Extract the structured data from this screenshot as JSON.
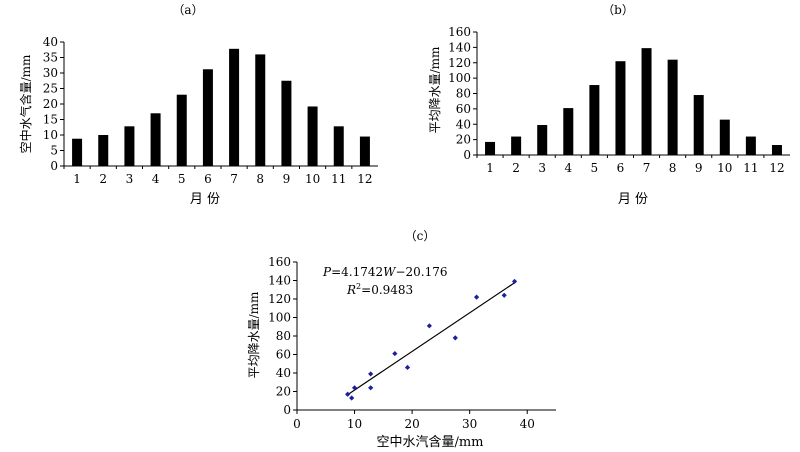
{
  "chart_data": [
    {
      "type": "bar",
      "panel_label": "（a）",
      "xlabel": "月 份",
      "ylabel": "空中水气含量/mm",
      "categories": [
        "1",
        "2",
        "3",
        "4",
        "5",
        "6",
        "7",
        "8",
        "9",
        "10",
        "11",
        "12"
      ],
      "values": [
        8.8,
        10.0,
        12.8,
        17.0,
        23.0,
        31.2,
        37.8,
        36.0,
        27.5,
        19.2,
        12.8,
        9.5
      ],
      "ylim": [
        0,
        40
      ],
      "yticks": [
        "0",
        "5",
        "10",
        "15",
        "20",
        "25",
        "30",
        "35",
        "40"
      ],
      "grid": false,
      "bar_color": "#000000"
    },
    {
      "type": "bar",
      "panel_label": "（b）",
      "xlabel": "月 份",
      "ylabel": "平均降水量/mm",
      "categories": [
        "1",
        "2",
        "3",
        "4",
        "5",
        "6",
        "7",
        "8",
        "9",
        "10",
        "11",
        "12"
      ],
      "values": [
        17,
        24,
        39,
        61,
        91,
        122,
        139,
        124,
        78,
        46,
        24,
        13
      ],
      "ylim": [
        0,
        160
      ],
      "yticks": [
        "0",
        "20",
        "40",
        "60",
        "80",
        "100",
        "120",
        "140",
        "160"
      ],
      "grid": false,
      "bar_color": "#000000"
    },
    {
      "type": "scatter",
      "panel_label": "（c）",
      "xlabel": "空中水汽含量/mm",
      "ylabel": "平均降水量/mm",
      "xlim": [
        0,
        45
      ],
      "ylim": [
        0,
        160
      ],
      "xticks": [
        "0",
        "10",
        "20",
        "30",
        "40"
      ],
      "yticks": [
        "0",
        "20",
        "40",
        "60",
        "80",
        "100",
        "120",
        "140",
        "160"
      ],
      "points": [
        {
          "x": 8.8,
          "y": 17
        },
        {
          "x": 9.5,
          "y": 13
        },
        {
          "x": 10.0,
          "y": 24
        },
        {
          "x": 12.8,
          "y": 39
        },
        {
          "x": 12.8,
          "y": 24
        },
        {
          "x": 17.0,
          "y": 61
        },
        {
          "x": 19.2,
          "y": 46
        },
        {
          "x": 23.0,
          "y": 91
        },
        {
          "x": 27.5,
          "y": 78
        },
        {
          "x": 31.2,
          "y": 122
        },
        {
          "x": 36.0,
          "y": 124
        },
        {
          "x": 37.8,
          "y": 139
        }
      ],
      "fit_line": {
        "slope": 4.1742,
        "intercept": -20.176,
        "x_range": [
          8.6,
          37.8
        ]
      },
      "equation": {
        "p_symbol": "P",
        "mid": "=4.1742",
        "w_symbol": "W",
        "tail": "−20.176"
      },
      "r2": {
        "r_symbol": "R",
        "sup": "2",
        "tail": "=0.9483"
      },
      "grid": false,
      "point_color": "#1f1f9e"
    }
  ]
}
